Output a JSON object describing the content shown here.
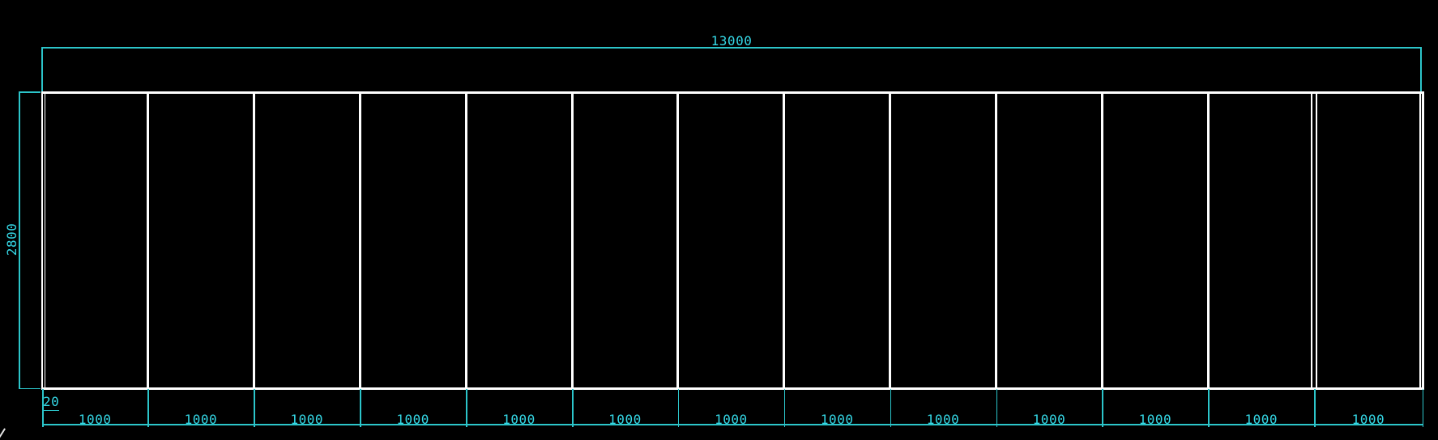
{
  "drawing": {
    "overall_width_dimension": {
      "label": "13000"
    },
    "overall_height_dimension": {
      "label": "2800"
    },
    "detail_dimension": {
      "label": "20"
    },
    "panel_count": 13,
    "panel_widths": [
      "1000",
      "1000",
      "1000",
      "1000",
      "1000",
      "1000",
      "1000",
      "1000",
      "1000",
      "1000",
      "1000",
      "1000",
      "1000"
    ]
  },
  "colors": {
    "background": "#000000",
    "geometry": "#ffffff",
    "dimension_line": "#2cc5ca",
    "dimension_text": "#35d8e6"
  }
}
